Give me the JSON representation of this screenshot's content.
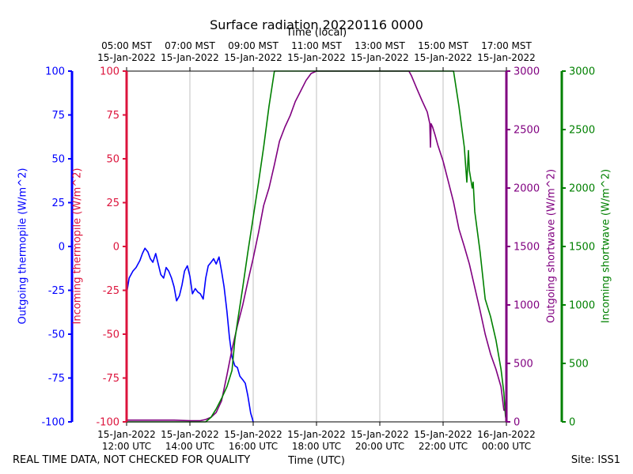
{
  "chart_data": {
    "type": "line",
    "title": "Surface radiation 20220116 0000",
    "top_axis_label": "Time (local)",
    "bottom_axis_label": "Time (UTC)",
    "footer_left": "REAL TIME DATA, NOT CHECKED FOR QUALITY",
    "footer_right": "Site: ISS1",
    "x_range_hours_utc": [
      12,
      24
    ],
    "grid": "vertical",
    "x_ticks": [
      {
        "hour": 12,
        "utc": [
          "15-Jan-2022",
          "12:00 UTC"
        ],
        "local": [
          "05:00 MST",
          "15-Jan-2022"
        ]
      },
      {
        "hour": 14,
        "utc": [
          "15-Jan-2022",
          "14:00 UTC"
        ],
        "local": [
          "07:00 MST",
          "15-Jan-2022"
        ]
      },
      {
        "hour": 16,
        "utc": [
          "15-Jan-2022",
          "16:00 UTC"
        ],
        "local": [
          "09:00 MST",
          "15-Jan-2022"
        ]
      },
      {
        "hour": 18,
        "utc": [
          "15-Jan-2022",
          "18:00 UTC"
        ],
        "local": [
          "11:00 MST",
          "15-Jan-2022"
        ]
      },
      {
        "hour": 20,
        "utc": [
          "15-Jan-2022",
          "20:00 UTC"
        ],
        "local": [
          "13:00 MST",
          "15-Jan-2022"
        ]
      },
      {
        "hour": 22,
        "utc": [
          "15-Jan-2022",
          "22:00 UTC"
        ],
        "local": [
          "15:00 MST",
          "15-Jan-2022"
        ]
      },
      {
        "hour": 24,
        "utc": [
          "16-Jan-2022",
          "00:00 UTC"
        ],
        "local": [
          "17:00 MST",
          "15-Jan-2022"
        ]
      }
    ],
    "axes": [
      {
        "id": "outgoing_thermopile",
        "label": "Outgoing thermopile (W/m^2)",
        "color": "#0000ff",
        "ylim": [
          -100,
          100
        ],
        "ticks": [
          -100,
          -75,
          -50,
          -25,
          0,
          25,
          50,
          75,
          100
        ]
      },
      {
        "id": "incoming_thermopile",
        "label": "Incoming thermopile (W/m^2)",
        "color": "#dc143c",
        "ylim": [
          -100,
          100
        ],
        "ticks": [
          -100,
          -75,
          -50,
          -25,
          0,
          25,
          50,
          75,
          100
        ]
      },
      {
        "id": "outgoing_shortwave",
        "label": "Outgoing shortwave (W/m^2)",
        "color": "#800080",
        "ylim": [
          0,
          3000
        ],
        "ticks": [
          0,
          500,
          1000,
          1500,
          2000,
          2500,
          3000
        ]
      },
      {
        "id": "incoming_shortwave",
        "label": "Incoming shortwave (W/m^2)",
        "color": "#008000",
        "ylim": [
          0,
          3000
        ],
        "ticks": [
          0,
          500,
          1000,
          1500,
          2000,
          2500,
          3000
        ]
      }
    ],
    "series": [
      {
        "axis": "outgoing_thermopile",
        "color": "#0000ff",
        "x": [
          12.0,
          12.08,
          12.2,
          12.3,
          12.42,
          12.5,
          12.58,
          12.67,
          12.75,
          12.83,
          12.92,
          13.0,
          13.08,
          13.17,
          13.25,
          13.33,
          13.42,
          13.5,
          13.58,
          13.67,
          13.75,
          13.83,
          13.92,
          14.0,
          14.08,
          14.17,
          14.25,
          14.33,
          14.42,
          14.5,
          14.58,
          14.67,
          14.75,
          14.83,
          14.92,
          15.0,
          15.08,
          15.17,
          15.25,
          15.33,
          15.42,
          15.5,
          15.58,
          15.67,
          15.75,
          15.83,
          15.92,
          15.97,
          16.0
        ],
        "y": [
          -27,
          -18,
          -14,
          -12,
          -8,
          -4,
          -1,
          -3,
          -7,
          -9,
          -4,
          -10,
          -16,
          -18,
          -12,
          -14,
          -18,
          -23,
          -31,
          -28,
          -22,
          -14,
          -11,
          -17,
          -27,
          -24,
          -26,
          -27,
          -30,
          -18,
          -11,
          -9,
          -7,
          -10,
          -6,
          -14,
          -23,
          -37,
          -52,
          -63,
          -68,
          -69,
          -74,
          -76,
          -78,
          -85,
          -95,
          -98,
          -100
        ]
      },
      {
        "axis": "outgoing_shortwave",
        "color": "#800080",
        "x": [
          12.0,
          12.5,
          13.0,
          13.5,
          14.0,
          14.33,
          14.5,
          14.67,
          14.83,
          15.0,
          15.17,
          15.33,
          15.5,
          15.67,
          15.83,
          16.0,
          16.17,
          16.33,
          16.5,
          16.67,
          16.83,
          17.0,
          17.17,
          17.33,
          17.5,
          17.67,
          17.83,
          18.0,
          19.0,
          20.0,
          20.92,
          21.0,
          21.17,
          21.33,
          21.5,
          21.58,
          21.6,
          21.62,
          21.67,
          21.75,
          21.83,
          22.0,
          22.17,
          22.33,
          22.5,
          22.67,
          22.83,
          23.0,
          23.17,
          23.33,
          23.5,
          23.67,
          23.83,
          23.92,
          24.0
        ],
        "y": [
          15,
          15,
          15,
          15,
          10,
          10,
          20,
          40,
          80,
          180,
          400,
          620,
          820,
          1000,
          1200,
          1400,
          1620,
          1850,
          2000,
          2200,
          2400,
          2520,
          2620,
          2740,
          2830,
          2920,
          2980,
          3000,
          3000,
          3000,
          3000,
          2960,
          2850,
          2750,
          2650,
          2550,
          2350,
          2550,
          2520,
          2450,
          2370,
          2230,
          2050,
          1880,
          1650,
          1500,
          1350,
          1150,
          950,
          750,
          580,
          450,
          300,
          100,
          90
        ]
      },
      {
        "axis": "incoming_shortwave",
        "color": "#008000",
        "x": [
          12.0,
          14.5,
          14.67,
          14.83,
          15.0,
          15.17,
          15.33,
          15.42,
          15.5,
          15.67,
          15.83,
          16.0,
          16.17,
          16.33,
          16.5,
          16.67,
          16.7,
          22.33,
          22.5,
          22.67,
          22.75,
          22.8,
          22.83,
          22.92,
          22.95,
          23.0,
          23.17,
          23.33,
          23.5,
          23.67,
          23.83,
          23.92,
          23.97,
          24.0
        ],
        "y": [
          0,
          0,
          40,
          110,
          200,
          300,
          440,
          700,
          850,
          1150,
          1450,
          1750,
          2050,
          2350,
          2700,
          3000,
          3000,
          3000,
          2700,
          2350,
          2050,
          2320,
          2150,
          2000,
          2050,
          1800,
          1450,
          1050,
          900,
          700,
          450,
          250,
          50,
          0
        ]
      }
    ]
  }
}
